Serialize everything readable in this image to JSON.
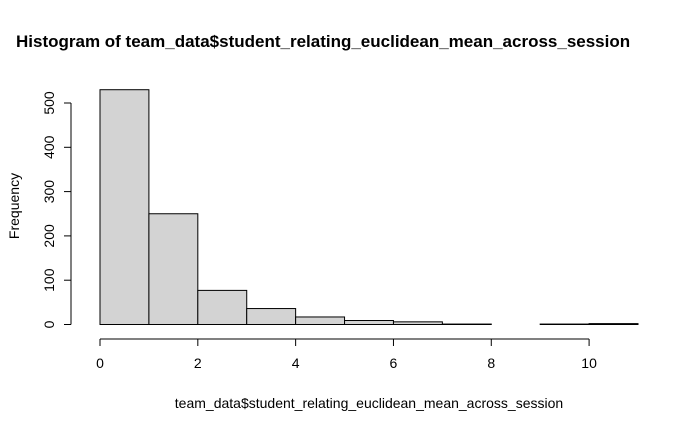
{
  "chart_data": {
    "type": "bar",
    "title": "Histogram of team_data$student_relating_euclidean_mean_across_session",
    "xlabel": "team_data$student_relating_euclidean_mean_across_session",
    "ylabel": "Frequency",
    "bins": [
      {
        "x0": 0,
        "x1": 1,
        "value": 530
      },
      {
        "x0": 1,
        "x1": 2,
        "value": 250
      },
      {
        "x0": 2,
        "x1": 3,
        "value": 77
      },
      {
        "x0": 3,
        "x1": 4,
        "value": 36
      },
      {
        "x0": 4,
        "x1": 5,
        "value": 17
      },
      {
        "x0": 5,
        "x1": 6,
        "value": 9
      },
      {
        "x0": 6,
        "x1": 7,
        "value": 6
      },
      {
        "x0": 7,
        "x1": 8,
        "value": 1
      },
      {
        "x0": 8,
        "x1": 9,
        "value": 0
      },
      {
        "x0": 9,
        "x1": 10,
        "value": 1
      },
      {
        "x0": 10,
        "x1": 11,
        "value": 2
      }
    ],
    "xlim": [
      0,
      11
    ],
    "ylim": [
      0,
      530
    ],
    "xticks": [
      0,
      2,
      4,
      6,
      8,
      10
    ],
    "yticks": [
      0,
      100,
      200,
      300,
      400,
      500
    ],
    "grid": false,
    "colors": {
      "bar_fill": "#d3d3d3",
      "bar_stroke": "#000000"
    }
  }
}
